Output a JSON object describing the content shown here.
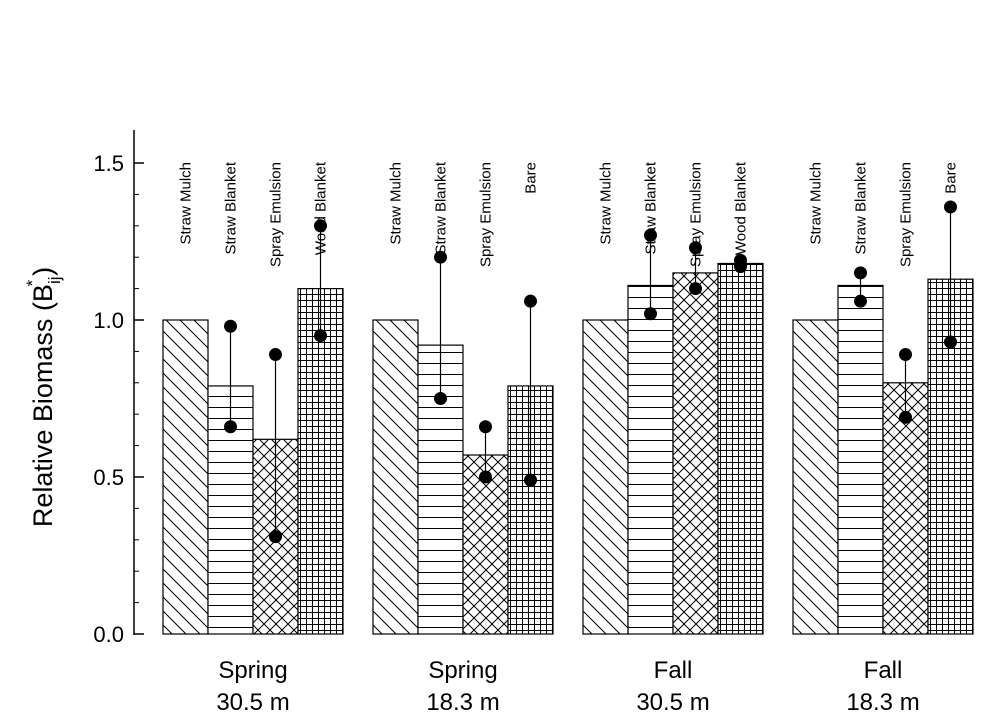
{
  "chart_data": {
    "type": "bar",
    "title": "",
    "ylabel": "Relative Biomass (B",
    "ylabel_sub": "ij",
    "ylabel_sup": "*",
    "ylabel_close": ")",
    "xlabel": "",
    "ylim": [
      0,
      1.6
    ],
    "yticks": [
      "0.0",
      "0.5",
      "1.0",
      "1.5"
    ],
    "yticks_values": [
      0,
      0.5,
      1.0,
      1.5
    ],
    "grid": false,
    "legend": "none",
    "groups": [
      {
        "label_line1": "Spring",
        "label_line2": "30.5 m",
        "bars": [
          {
            "label": "Straw Mulch",
            "pattern": "diagonal",
            "value": 1.0,
            "err_low": null,
            "err_high": null
          },
          {
            "label": "Straw Blanket",
            "pattern": "horizontal",
            "value": 0.79,
            "err_low": 0.66,
            "err_high": 0.98
          },
          {
            "label": "Spray Emulsion",
            "pattern": "crosshatch",
            "value": 0.62,
            "err_low": 0.31,
            "err_high": 0.89
          },
          {
            "label": "Wood Blanket",
            "pattern": "grid",
            "value": 1.1,
            "err_low": 0.95,
            "err_high": 1.3
          }
        ]
      },
      {
        "label_line1": "Spring",
        "label_line2": "18.3 m",
        "bars": [
          {
            "label": "Straw Mulch",
            "pattern": "diagonal",
            "value": 1.0,
            "err_low": null,
            "err_high": null
          },
          {
            "label": "Straw Blanket",
            "pattern": "horizontal",
            "value": 0.92,
            "err_low": 0.75,
            "err_high": 1.2
          },
          {
            "label": "Spray Emulsion",
            "pattern": "crosshatch",
            "value": 0.57,
            "err_low": 0.5,
            "err_high": 0.66
          },
          {
            "label": "Bare",
            "pattern": "grid",
            "value": 0.79,
            "err_low": 0.49,
            "err_high": 1.06
          }
        ]
      },
      {
        "label_line1": "Fall",
        "label_line2": "30.5 m",
        "bars": [
          {
            "label": "Straw Mulch",
            "pattern": "diagonal",
            "value": 1.0,
            "err_low": null,
            "err_high": null
          },
          {
            "label": "Straw Blanket",
            "pattern": "horizontal",
            "value": 1.11,
            "err_low": 1.02,
            "err_high": 1.27
          },
          {
            "label": "Spray Emulsion",
            "pattern": "crosshatch",
            "value": 1.15,
            "err_low": 1.1,
            "err_high": 1.23
          },
          {
            "label": "Wood Blanket",
            "pattern": "grid",
            "value": 1.18,
            "err_low": 1.17,
            "err_high": 1.19
          }
        ]
      },
      {
        "label_line1": "Fall",
        "label_line2": "18.3 m",
        "bars": [
          {
            "label": "Straw Mulch",
            "pattern": "diagonal",
            "value": 1.0,
            "err_low": null,
            "err_high": null
          },
          {
            "label": "Straw Blanket",
            "pattern": "horizontal",
            "value": 1.11,
            "err_low": 1.06,
            "err_high": 1.15
          },
          {
            "label": "Spray Emulsion",
            "pattern": "crosshatch",
            "value": 0.8,
            "err_low": 0.69,
            "err_high": 0.89
          },
          {
            "label": "Bare",
            "pattern": "grid",
            "value": 1.13,
            "err_low": 0.93,
            "err_high": 1.36
          }
        ]
      }
    ]
  }
}
